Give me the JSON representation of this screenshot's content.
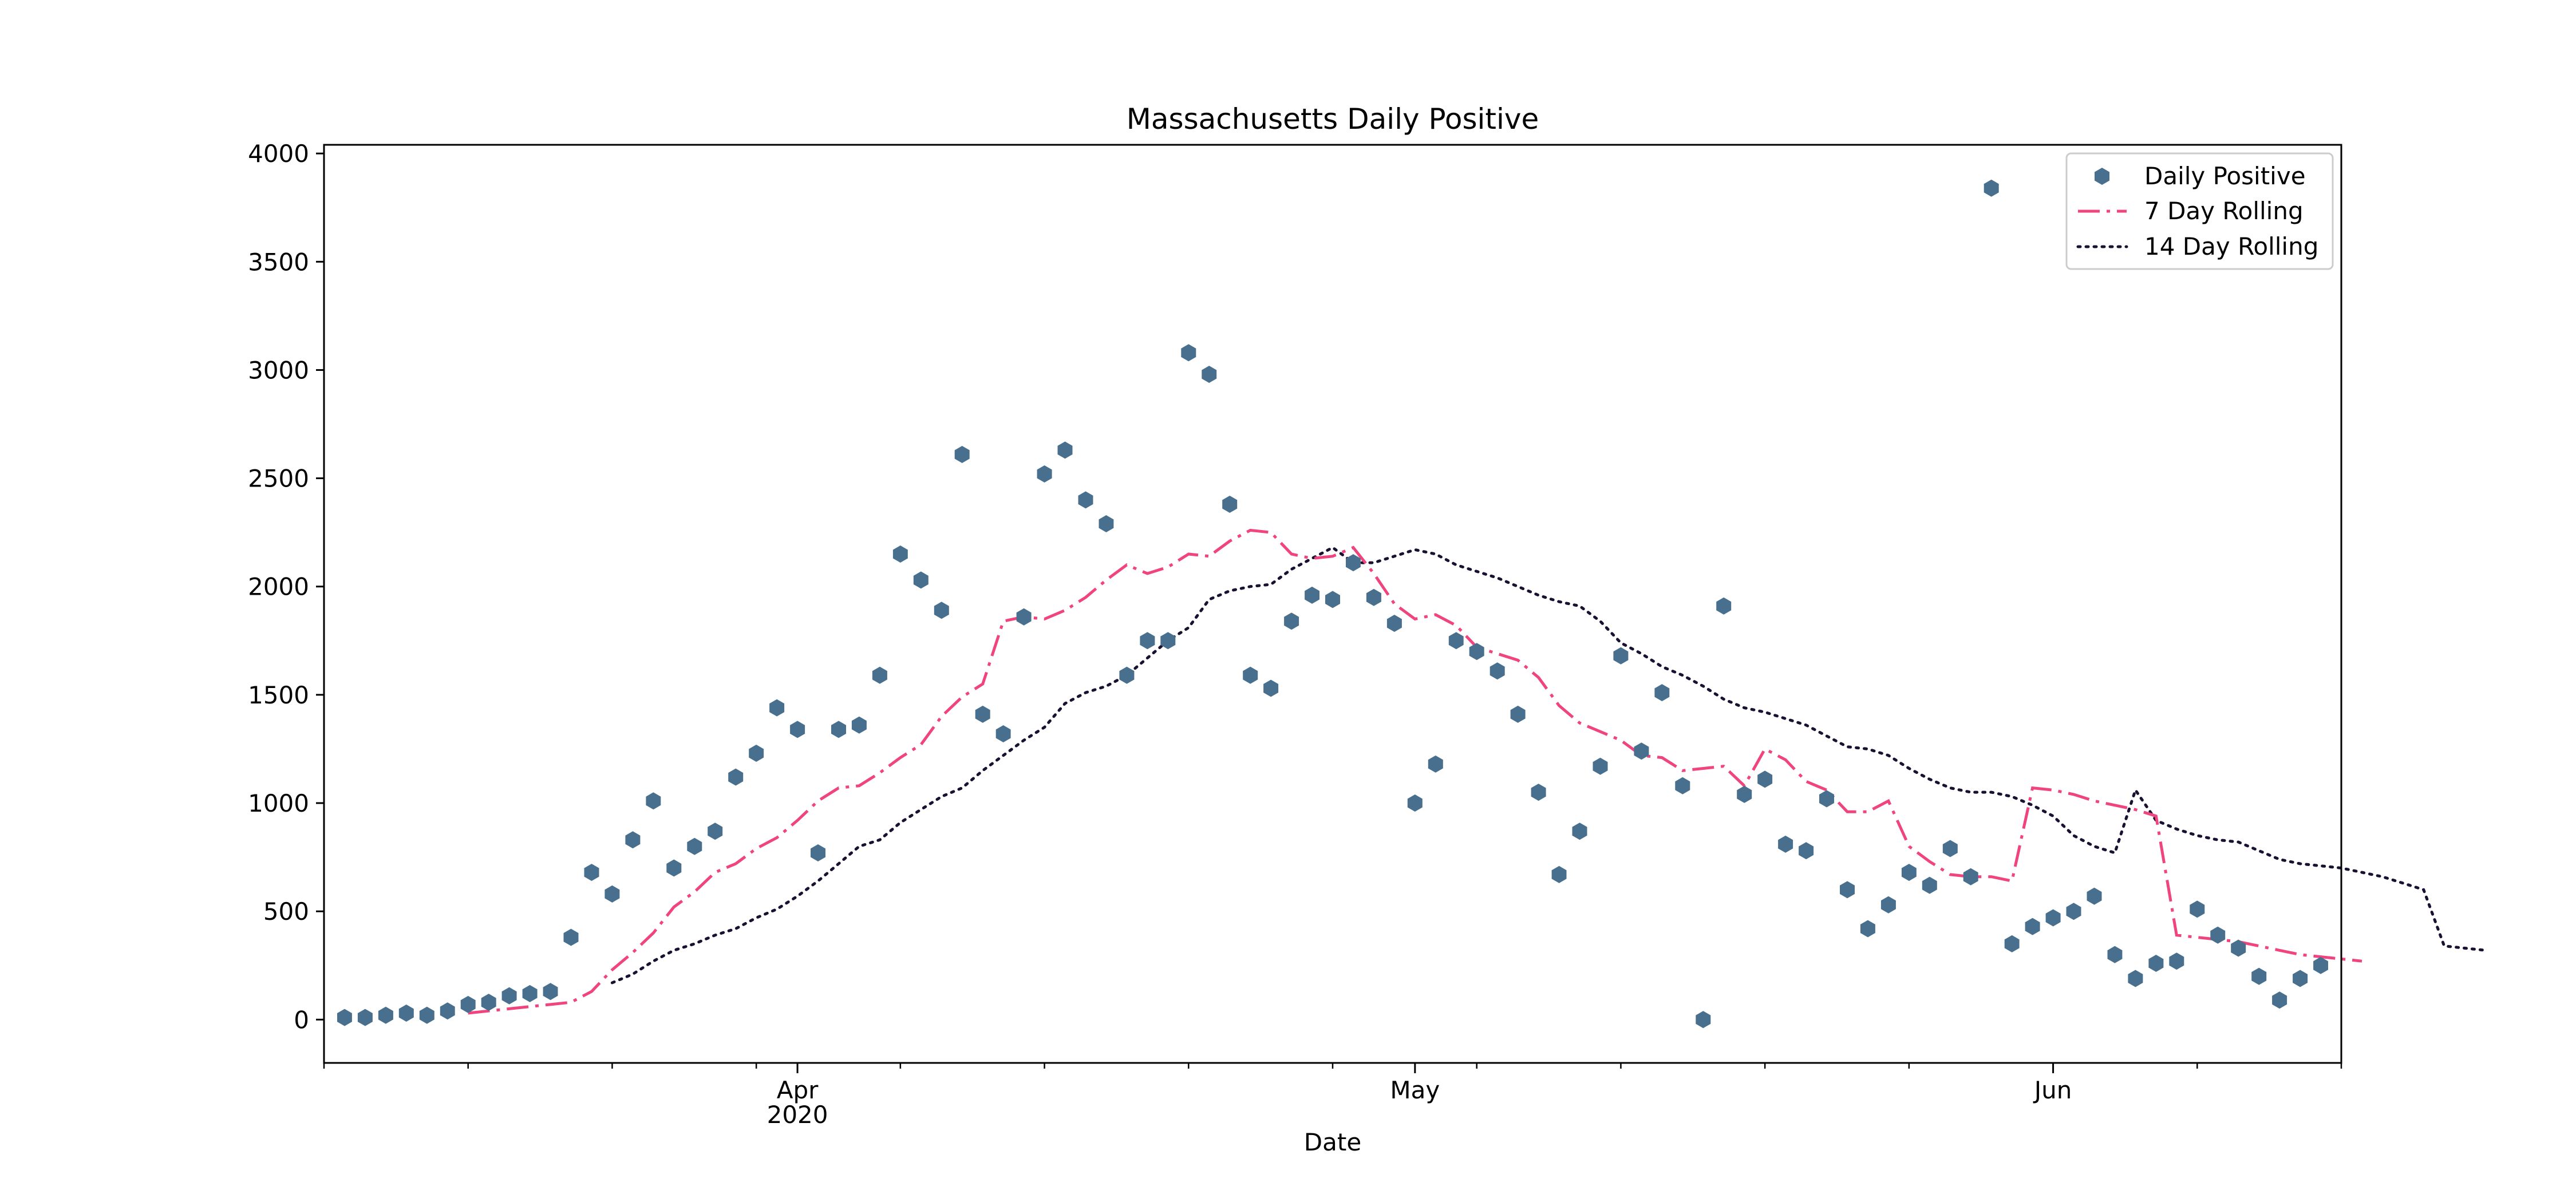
{
  "chart_data": {
    "type": "line",
    "title": "Massachusetts Daily Positive",
    "xlabel": "Date",
    "ylabel": "",
    "x_start": "2020-03-09",
    "x_range": [
      "2020-03-09",
      "2020-06-15"
    ],
    "ylim": [
      -200,
      4040
    ],
    "y_ticks": [
      0,
      500,
      1000,
      1500,
      2000,
      2500,
      3000,
      3500,
      4000
    ],
    "x_major_ticks": [
      {
        "date": "2020-04-01",
        "label": "Apr",
        "sublabel": "2020"
      },
      {
        "date": "2020-05-01",
        "label": "May",
        "sublabel": ""
      },
      {
        "date": "2020-06-01",
        "label": "Jun",
        "sublabel": ""
      }
    ],
    "x_minor_ticks": [
      "2020-03-09",
      "2020-03-16",
      "2020-03-23",
      "2020-03-30",
      "2020-04-06",
      "2020-04-13",
      "2020-04-20",
      "2020-04-27",
      "2020-05-04",
      "2020-05-11",
      "2020-05-18",
      "2020-05-25",
      "2020-06-01",
      "2020-06-08",
      "2020-06-15"
    ],
    "grid": false,
    "legend_position": "top-right",
    "colors": {
      "daily": "#48708e",
      "rolling7": "#f0447e",
      "rolling14": "#1a1030"
    },
    "series": [
      {
        "name": "Daily Positive",
        "kind": "scatter",
        "start": "2020-03-10",
        "values": [
          10,
          10,
          20,
          30,
          20,
          40,
          70,
          80,
          110,
          120,
          130,
          380,
          680,
          580,
          830,
          1010,
          700,
          800,
          870,
          1120,
          1230,
          1440,
          1340,
          770,
          1340,
          1360,
          1590,
          2150,
          2030,
          1890,
          2610,
          1410,
          1320,
          1860,
          2520,
          2630,
          2400,
          2290,
          1590,
          1750,
          1750,
          3080,
          2980,
          2380,
          1590,
          1530,
          1840,
          1960,
          1940,
          2110,
          1950,
          1830,
          1000,
          1180,
          1750,
          1700,
          1610,
          1410,
          1050,
          670,
          870,
          1170,
          1680,
          1240,
          1510,
          1080,
          0,
          1910,
          1040,
          1110,
          810,
          780,
          1020,
          600,
          420,
          530,
          680,
          620,
          790,
          660,
          3840,
          350,
          430,
          470,
          500,
          570,
          300,
          190,
          260,
          270,
          510,
          390,
          330,
          200,
          90,
          190,
          250
        ]
      },
      {
        "name": "7 Day Rolling",
        "kind": "line",
        "start": "2020-03-16",
        "values": [
          30,
          40,
          50,
          60,
          70,
          80,
          130,
          230,
          310,
          400,
          520,
          590,
          680,
          720,
          790,
          840,
          920,
          1010,
          1070,
          1080,
          1140,
          1210,
          1270,
          1400,
          1490,
          1550,
          1840,
          1860,
          1850,
          1890,
          1950,
          2030,
          2100,
          2060,
          2090,
          2150,
          2140,
          2210,
          2260,
          2250,
          2150,
          2130,
          2140,
          2180,
          2060,
          1920,
          1850,
          1870,
          1820,
          1720,
          1690,
          1660,
          1580,
          1450,
          1370,
          1330,
          1290,
          1220,
          1210,
          1150,
          1160,
          1170,
          1080,
          1250,
          1200,
          1100,
          1060,
          960,
          960,
          1010,
          800,
          730,
          670,
          660,
          660,
          640,
          1070,
          1060,
          1040,
          1010,
          990,
          970,
          940,
          390,
          380,
          370,
          360,
          340,
          320,
          300,
          290,
          280,
          270
        ]
      },
      {
        "name": "14 Day Rolling",
        "kind": "line",
        "start": "2020-03-23",
        "values": [
          170,
          210,
          270,
          320,
          350,
          390,
          420,
          470,
          510,
          570,
          640,
          720,
          800,
          830,
          910,
          970,
          1030,
          1070,
          1150,
          1220,
          1290,
          1350,
          1460,
          1510,
          1540,
          1590,
          1670,
          1750,
          1810,
          1940,
          1980,
          2000,
          2010,
          2080,
          2130,
          2180,
          2110,
          2110,
          2140,
          2170,
          2150,
          2100,
          2070,
          2040,
          2000,
          1960,
          1930,
          1910,
          1840,
          1740,
          1690,
          1630,
          1590,
          1540,
          1480,
          1440,
          1420,
          1390,
          1360,
          1310,
          1260,
          1250,
          1220,
          1160,
          1110,
          1070,
          1050,
          1050,
          1030,
          990,
          940,
          850,
          800,
          770,
          1060,
          920,
          880,
          850,
          830,
          820,
          780,
          740,
          720,
          710,
          700,
          680,
          660,
          630,
          600,
          340,
          330,
          320
        ]
      }
    ]
  }
}
